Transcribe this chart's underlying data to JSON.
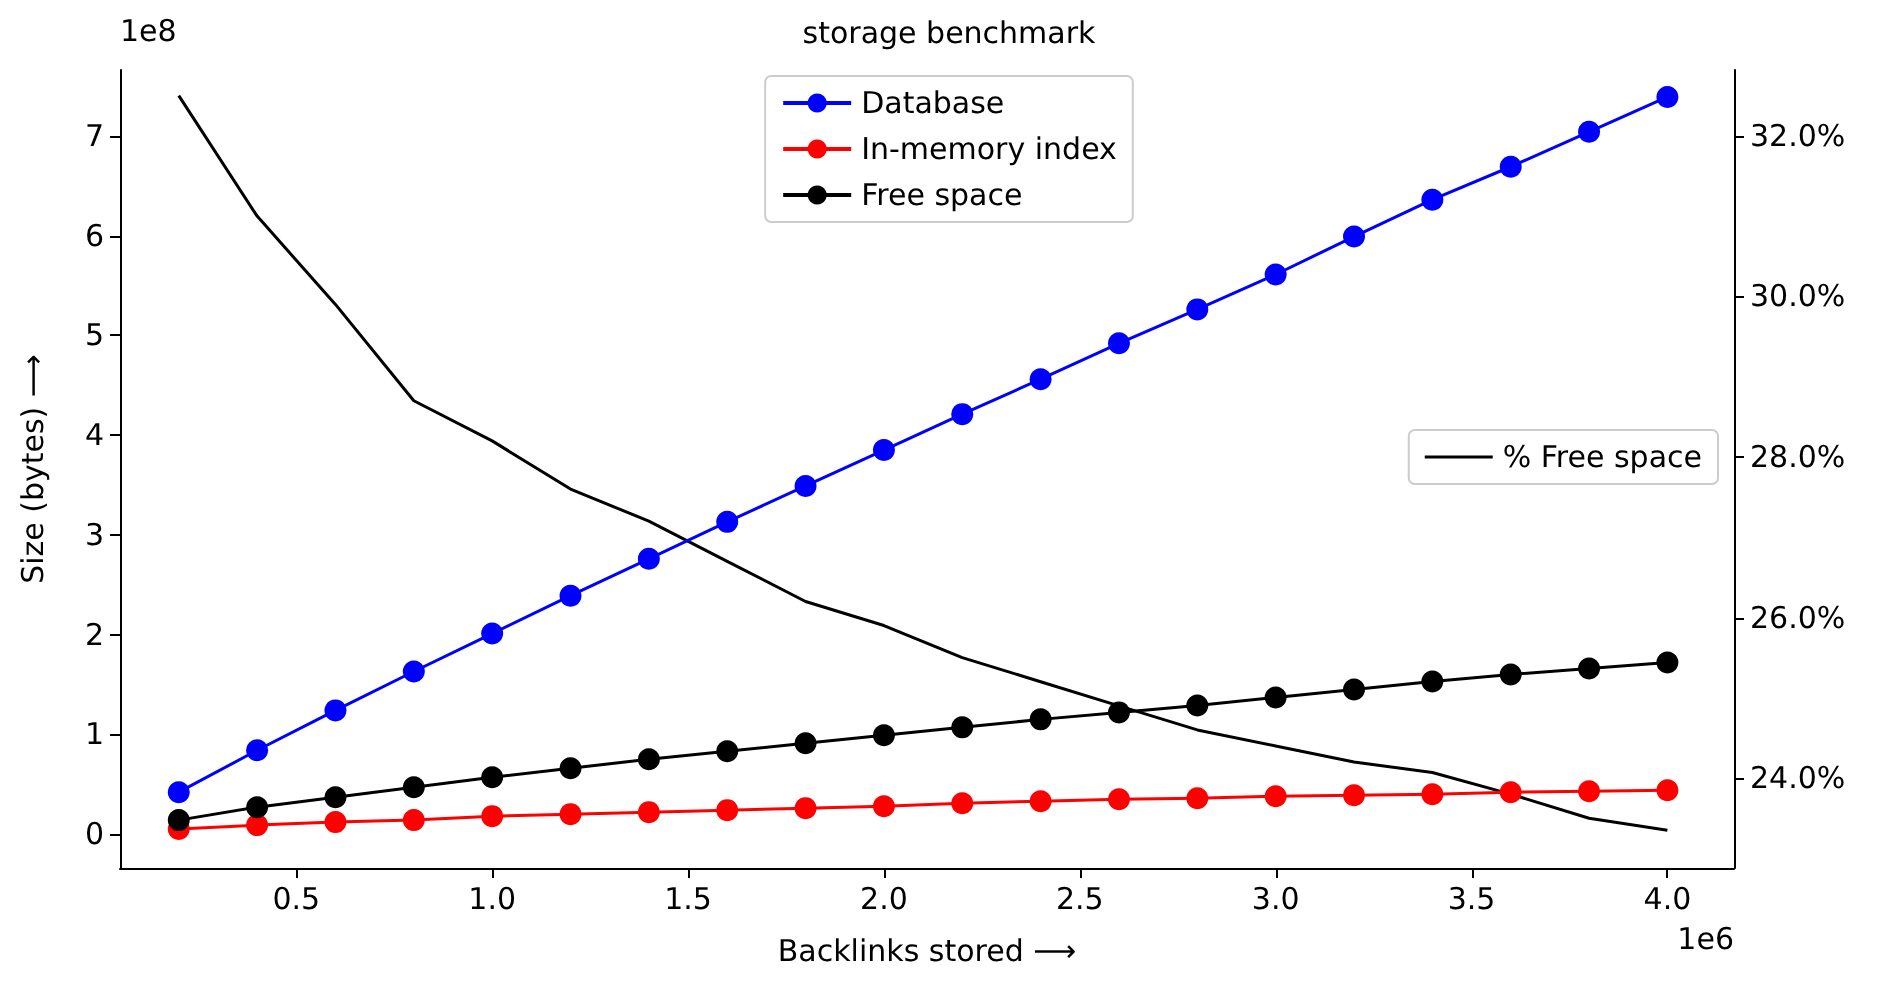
{
  "chart_data": {
    "type": "line",
    "title": "storage benchmark",
    "xlabel": "Backlinks stored ⟶",
    "ylabel": "Size (bytes) ⟶",
    "annotations": [
      "1e8",
      "1e6"
    ],
    "x": [
      0.2,
      0.4,
      0.6,
      0.8,
      1.0,
      1.2,
      1.4,
      1.6,
      1.8,
      2.0,
      2.2,
      2.4,
      2.6,
      2.8,
      3.0,
      3.2,
      3.4,
      3.6,
      3.8,
      4.0
    ],
    "series": [
      {
        "name": "Database",
        "color": "#0000ff",
        "values": [
          0.42,
          0.84,
          1.24,
          1.63,
          2.01,
          2.39,
          2.76,
          3.13,
          3.49,
          3.85,
          4.21,
          4.56,
          4.92,
          5.26,
          5.61,
          5.99,
          6.36,
          6.69,
          7.04,
          7.39
        ]
      },
      {
        "name": "In-memory index",
        "color": "#ff0000",
        "values": [
          0.05,
          0.09,
          0.12,
          0.14,
          0.18,
          0.2,
          0.22,
          0.24,
          0.26,
          0.28,
          0.31,
          0.33,
          0.35,
          0.36,
          0.38,
          0.39,
          0.4,
          0.42,
          0.43,
          0.44
        ]
      },
      {
        "name": "Free space",
        "color": "#000000",
        "values": [
          0.14,
          0.27,
          0.37,
          0.47,
          0.57,
          0.66,
          0.75,
          0.83,
          0.91,
          0.99,
          1.07,
          1.15,
          1.22,
          1.29,
          1.37,
          1.45,
          1.53,
          1.6,
          1.66,
          1.72
        ]
      },
      {
        "name": "% Free space",
        "color": "#000000",
        "axis": "y2",
        "marker": "none",
        "values": [
          32.5,
          31.0,
          29.9,
          28.7,
          28.2,
          27.6,
          27.2,
          26.7,
          26.2,
          25.9,
          25.5,
          25.2,
          24.9,
          24.6,
          24.4,
          24.2,
          24.07,
          23.8,
          23.5,
          23.35
        ]
      }
    ],
    "marker": "circle",
    "legend": "top",
    "xlim": [
      0.05,
      4.17
    ],
    "xticks": [
      {
        "value": 0.5,
        "label": "0.5"
      },
      {
        "value": 1.0,
        "label": "1.0"
      },
      {
        "value": 1.5,
        "label": "1.5"
      },
      {
        "value": 2.0,
        "label": "2.0"
      },
      {
        "value": 2.5,
        "label": "2.5"
      },
      {
        "value": 3.0,
        "label": "3.0"
      },
      {
        "value": 3.5,
        "label": "3.5"
      },
      {
        "value": 4.0,
        "label": "4.0"
      }
    ],
    "ylim": [
      -0.34,
      7.66
    ],
    "yticks": [
      0,
      1,
      2,
      3,
      4,
      5,
      6,
      7
    ],
    "y2lim": [
      22.88,
      32.82
    ],
    "y2ticks": [
      {
        "value": 24,
        "label": "24.0%"
      },
      {
        "value": 26,
        "label": "26.0%"
      },
      {
        "value": 28,
        "label": "28.0%"
      },
      {
        "value": 30,
        "label": "30.0%"
      },
      {
        "value": 32,
        "label": "32.0%"
      }
    ]
  }
}
